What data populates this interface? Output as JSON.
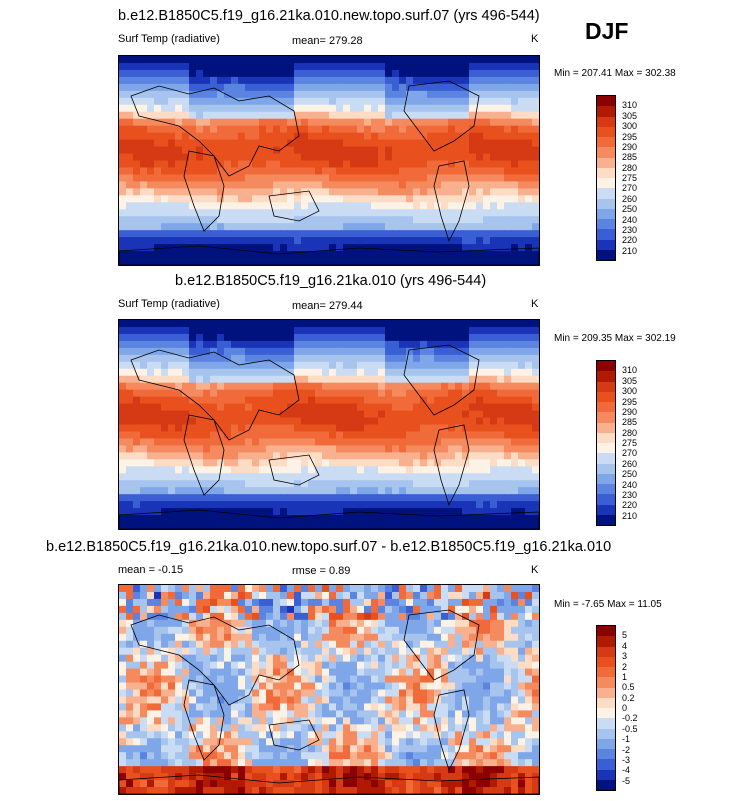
{
  "season": "DJF",
  "panels": [
    {
      "title": "b.e12.B1850C5.f19_g16.21ka.010.new.topo.surf.07 (yrs 496-544)",
      "left_label": "Surf Temp (radiative)",
      "center_label": "mean= 279.28",
      "units": "K",
      "minmax": "Min = 207.41 Max = 302.38"
    },
    {
      "title": "b.e12.B1850C5.f19_g16.21ka.010 (yrs 496-544)",
      "left_label": "Surf Temp (radiative)",
      "center_label": "mean= 279.44",
      "units": "K",
      "minmax": "Min = 209.35 Max = 302.19"
    },
    {
      "title": "b.e12.B1850C5.f19_g16.21ka.010.new.topo.surf.07 - b.e12.B1850C5.f19_g16.21ka.010",
      "left_label": "mean =  -0.15",
      "center_label": "rmse =   0.89",
      "units": "K",
      "minmax": "Min =  -7.65 Max =  11.05"
    }
  ],
  "chart_data": {
    "type": "heatmap",
    "description_field": "surface temperature (radiative)",
    "colorbar_abs": {
      "levels": [
        "310",
        "305",
        "300",
        "295",
        "290",
        "285",
        "280",
        "275",
        "270",
        "260",
        "250",
        "240",
        "230",
        "220",
        "210"
      ],
      "colors": [
        "#8b0000",
        "#b01a00",
        "#d63a14",
        "#e8501e",
        "#f06a3a",
        "#f48a5e",
        "#f8b08e",
        "#fcdcc4",
        "#fdf2e6",
        "#c9dcf4",
        "#a6c4ee",
        "#7ea6e8",
        "#5a84e0",
        "#3a5ed4",
        "#1a34b8",
        "#00127e"
      ]
    },
    "colorbar_diff": {
      "levels": [
        "5",
        "4",
        "3",
        "2",
        "1",
        "0.5",
        "0.2",
        "0",
        "-0.2",
        "-0.5",
        "-1",
        "-2",
        "-3",
        "-4",
        "-5"
      ],
      "colors": [
        "#8b0000",
        "#b01a00",
        "#d63a14",
        "#e8501e",
        "#f06a3a",
        "#f48a5e",
        "#f8b08e",
        "#fcdcc4",
        "#fdf2e6",
        "#c9dcf4",
        "#a6c4ee",
        "#7ea6e8",
        "#5a84e0",
        "#3a5ed4",
        "#1a34b8",
        "#00127e"
      ]
    },
    "panel_stats": [
      {
        "mean": 279.28,
        "min": 207.41,
        "max": 302.38
      },
      {
        "mean": 279.44,
        "min": 209.35,
        "max": 302.19
      },
      {
        "mean": -0.15,
        "rmse": 0.89,
        "min": -7.65,
        "max": 11.05
      }
    ]
  }
}
